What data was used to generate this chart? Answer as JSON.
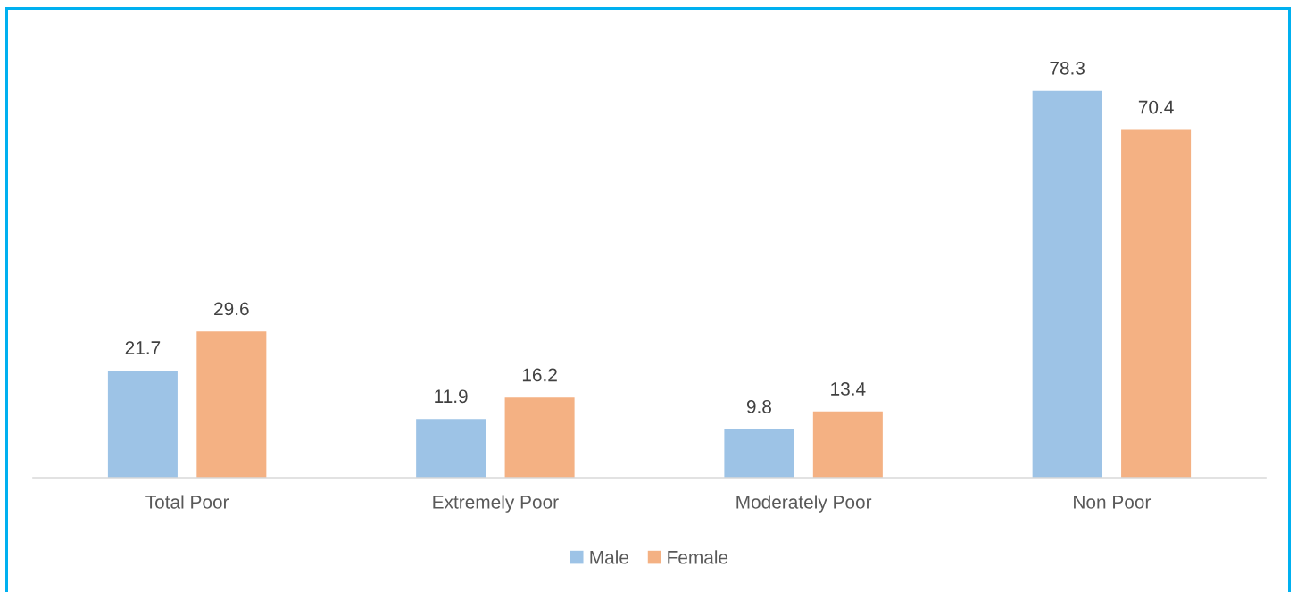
{
  "chart_data": {
    "type": "bar",
    "categories": [
      "Total Poor",
      "Extremely Poor",
      "Moderately Poor",
      "Non Poor"
    ],
    "series": [
      {
        "name": "Male",
        "color": "#9dc3e6",
        "values": [
          21.7,
          11.9,
          9.8,
          78.3
        ]
      },
      {
        "name": "Female",
        "color": "#f4b183",
        "values": [
          29.6,
          16.2,
          13.4,
          70.4
        ]
      }
    ],
    "data_labels": true,
    "legend": "bottom",
    "grid": false,
    "tick_labels": "x"
  }
}
